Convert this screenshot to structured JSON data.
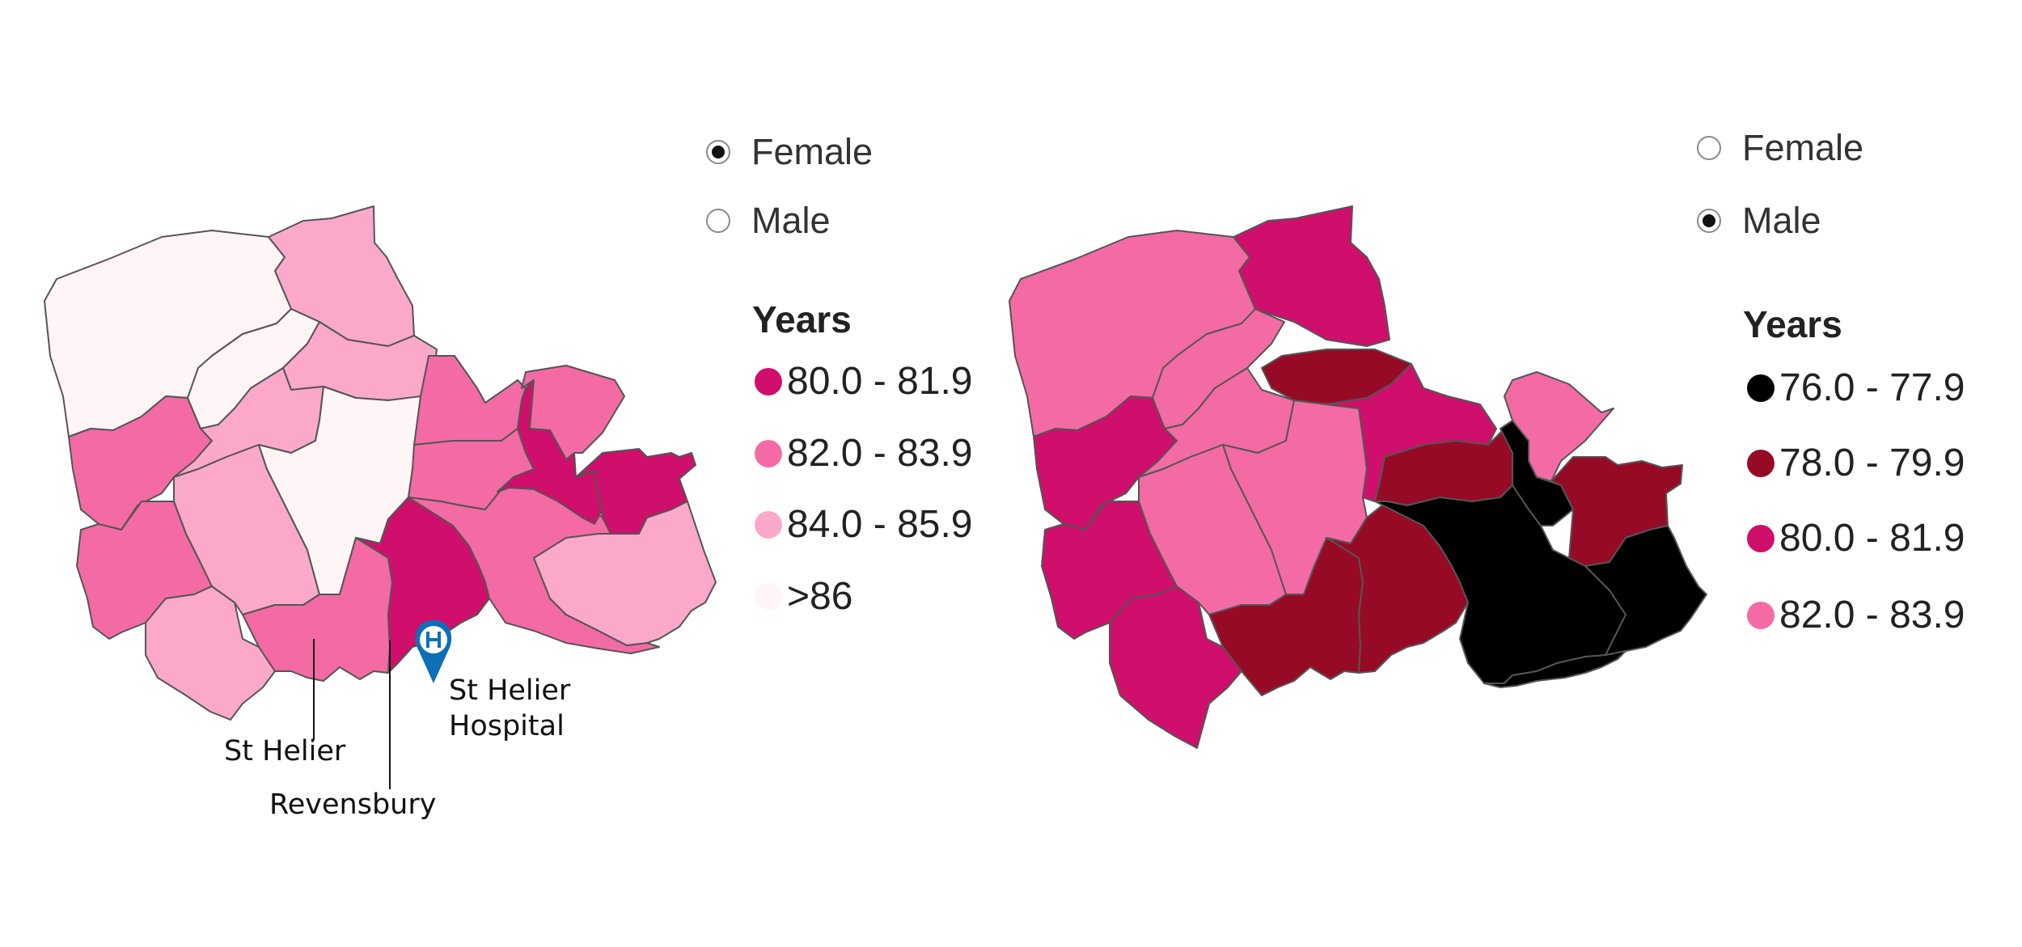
{
  "colors": {
    "c80": "#cf0f6b",
    "c82": "#f46aa4",
    "c84": "#fba8cb",
    "c86": "#fff4f6",
    "c76": "#000000",
    "c78": "#970a25",
    "hospital": "#0d6fb8"
  },
  "left_panel": {
    "radios": [
      {
        "label": "Female",
        "selected": true
      },
      {
        "label": "Male",
        "selected": false
      }
    ],
    "legend": {
      "title": "Years",
      "items": [
        {
          "label": "80.0 - 81.9",
          "color": "#cf0f6b"
        },
        {
          "label": "82.0 - 83.9",
          "color": "#f46aa4"
        },
        {
          "label": "84.0 - 85.9",
          "color": "#fba8cb"
        },
        {
          "label": ">86",
          "color": "#fff4f6"
        }
      ]
    },
    "annotations": {
      "hospital": "St Helier\nHospital",
      "st_helier": "St Helier",
      "ravensbury": "Revensbury"
    },
    "hospital_icon": "hospital-marker-icon"
  },
  "right_panel": {
    "radios": [
      {
        "label": "Female",
        "selected": false
      },
      {
        "label": "Male",
        "selected": true
      }
    ],
    "legend": {
      "title": "Years",
      "items": [
        {
          "label": "76.0 - 77.9",
          "color": "#000000"
        },
        {
          "label": "78.0 - 79.9",
          "color": "#970a25"
        },
        {
          "label": "80.0 - 81.9",
          "color": "#cf0f6b"
        },
        {
          "label": "82.0 - 83.9",
          "color": "#f46aa4"
        }
      ]
    }
  }
}
